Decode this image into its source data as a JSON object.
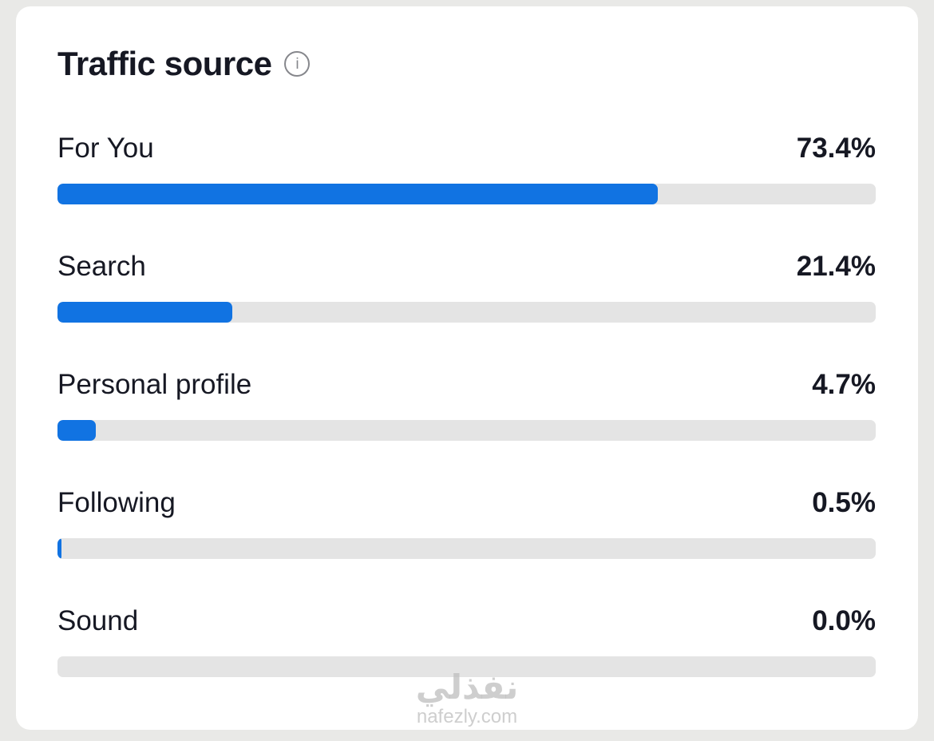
{
  "panel": {
    "title": "Traffic source",
    "info_glyph": "i"
  },
  "colors": {
    "accent": "#1173e2",
    "track": "#e4e4e4",
    "text": "#161823",
    "page_background": "#e9e9e7"
  },
  "chart_data": {
    "type": "bar",
    "orientation": "horizontal",
    "title": "Traffic source",
    "categories": [
      "For You",
      "Search",
      "Personal profile",
      "Following",
      "Sound"
    ],
    "values": [
      73.4,
      21.4,
      4.7,
      0.5,
      0.0
    ],
    "value_labels": [
      "73.4%",
      "21.4%",
      "4.7%",
      "0.5%",
      "0.0%"
    ],
    "xlim": [
      0,
      100
    ],
    "grid": false,
    "legend": false
  },
  "watermark": {
    "line1": "نفذلي",
    "line2": "nafezly.com"
  }
}
